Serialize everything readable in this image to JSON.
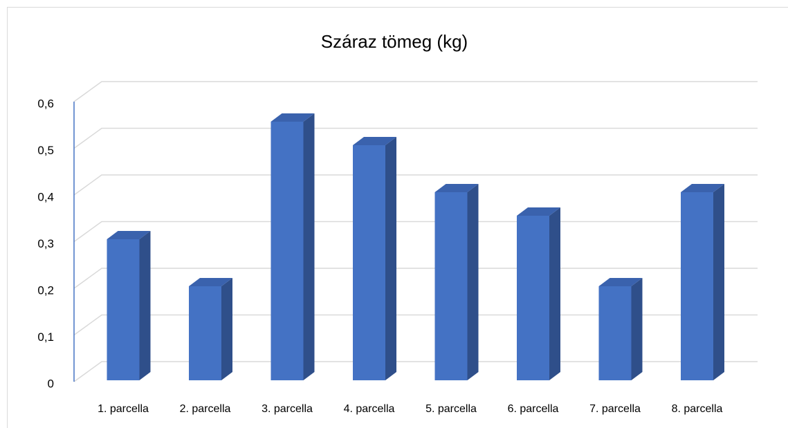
{
  "chart_data": {
    "type": "bar3d",
    "title": "Száraz tömeg (kg)",
    "categories": [
      "1. parcella",
      "2. parcella",
      "3. parcella",
      "4. parcella",
      "5. parcella",
      "6. parcella",
      "7. parcella",
      "8. parcella"
    ],
    "values": [
      0.3,
      0.2,
      0.55,
      0.5,
      0.4,
      0.35,
      0.2,
      0.4
    ],
    "color": "#4472c4",
    "ylim": [
      0,
      0.6
    ],
    "yticks": [
      0,
      {
        "value": 0.1,
        "label": "0,1"
      },
      {
        "value": 0.2,
        "label": "0,2"
      },
      {
        "value": 0.3,
        "label": "0,3"
      },
      {
        "value": 0.4,
        "label": "0,4"
      },
      {
        "value": 0.5,
        "label": "0,5"
      },
      {
        "value": 0.6,
        "label": "0,6"
      }
    ],
    "grid": true
  }
}
